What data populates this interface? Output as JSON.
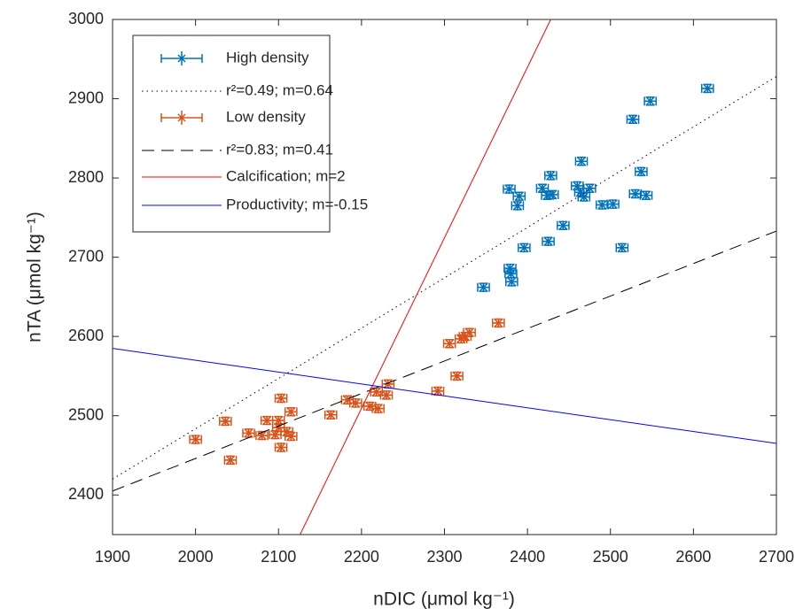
{
  "chart_data": {
    "type": "scatter",
    "x_label": "nDIC (μmol kg⁻¹)",
    "y_label": "nTA (μmol kg⁻¹)",
    "xlim": [
      1900,
      2700
    ],
    "ylim": [
      2350,
      3000
    ],
    "xticks": [
      1900,
      2000,
      2100,
      2200,
      2300,
      2400,
      2500,
      2600,
      2700
    ],
    "yticks": [
      2400,
      2500,
      2600,
      2700,
      2800,
      2900,
      3000
    ],
    "legend": "upper left",
    "series": [
      {
        "name": "High density",
        "type": "errorbar",
        "color": "#0072bd",
        "x_error": 7,
        "y_error": 5,
        "x": [
          2617,
          2548,
          2527,
          2537,
          2465,
          2428,
          2378,
          2390,
          2388,
          2418,
          2424,
          2430,
          2460,
          2464,
          2468,
          2475,
          2530,
          2543,
          2490,
          2503,
          2443,
          2425,
          2396,
          2514,
          2379,
          2380,
          2381,
          2347
        ],
        "values": [
          2913,
          2897,
          2874,
          2808,
          2821,
          2803,
          2786,
          2777,
          2765,
          2787,
          2778,
          2779,
          2790,
          2782,
          2776,
          2787,
          2780,
          2778,
          2766,
          2767,
          2740,
          2720,
          2712,
          2712,
          2686,
          2679,
          2669,
          2662
        ]
      },
      {
        "name": "r²=0.49; m=0.64",
        "type": "line",
        "color": "#000000",
        "dash": "dotted",
        "x": [
          1900,
          2700
        ],
        "values": [
          2420,
          2928
        ]
      },
      {
        "name": "Low density",
        "type": "errorbar",
        "color": "#d95319",
        "x_error": 7,
        "y_error": 5,
        "x": [
          2365,
          2330,
          2325,
          2320,
          2306,
          2315,
          2292,
          2232,
          2230,
          2218,
          2210,
          2220,
          2183,
          2193,
          2163,
          2115,
          2103,
          2100,
          2086,
          2096,
          2103,
          2100,
          2110,
          2115,
          2064,
          2080,
          2036,
          2000,
          2042
        ],
        "values": [
          2617,
          2605,
          2600,
          2597,
          2591,
          2550,
          2531,
          2540,
          2526,
          2530,
          2512,
          2509,
          2520,
          2516,
          2501,
          2505,
          2522,
          2494,
          2494,
          2476,
          2460,
          2485,
          2480,
          2474,
          2478,
          2475,
          2493,
          2470,
          2444
        ]
      },
      {
        "name": "r²=0.83; m=0.41",
        "type": "line",
        "color": "#000000",
        "dash": "dashed",
        "x": [
          1900,
          2700
        ],
        "values": [
          2405,
          2733
        ]
      },
      {
        "name": "Calcification; m=2",
        "type": "line",
        "color": "#ff0000",
        "dash": "solid",
        "x": [
          2126,
          2428
        ],
        "values": [
          2350,
          3000
        ]
      },
      {
        "name": "Productivity; m=-0.15",
        "type": "line",
        "color": "#0000ff",
        "dash": "solid",
        "x": [
          1900,
          2700
        ],
        "values": [
          2585,
          2465
        ]
      }
    ]
  }
}
